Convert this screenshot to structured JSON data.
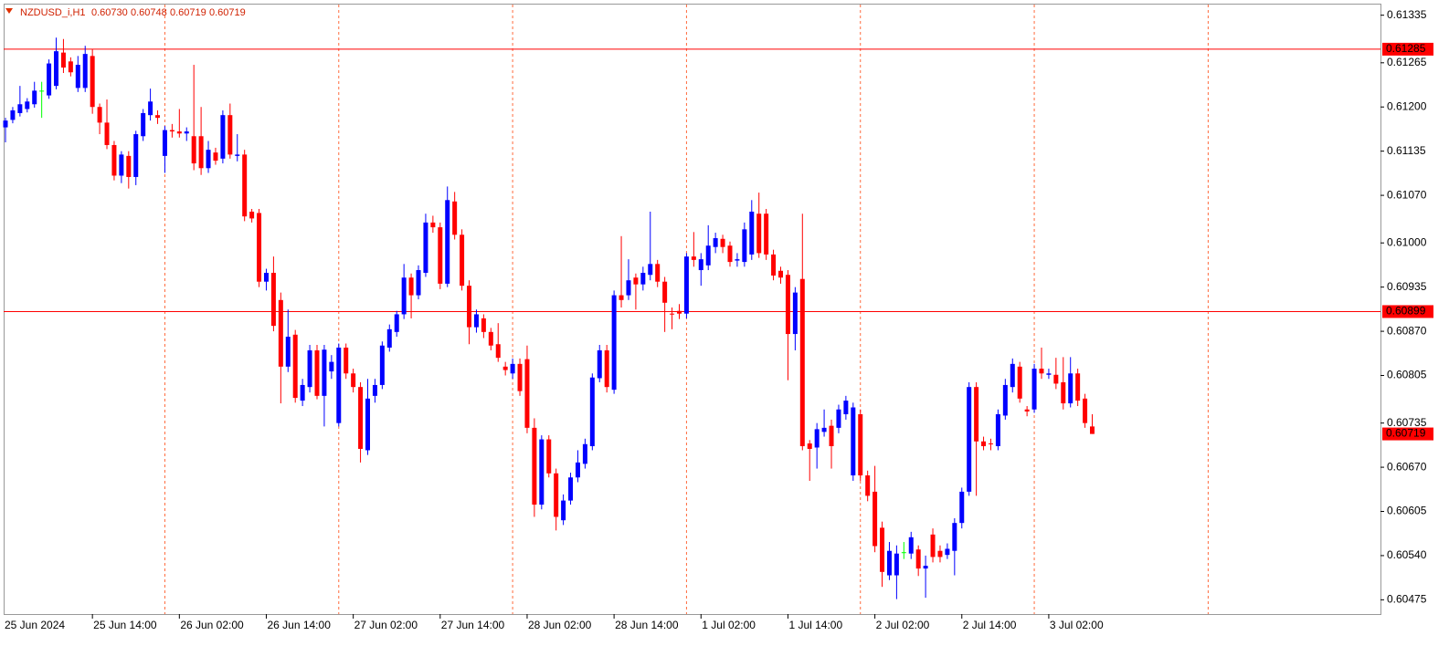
{
  "chart_data": {
    "type": "candlestick",
    "header": {
      "symbol": "NZDUSD_i,H1",
      "values": [
        {
          "value": 0.6073,
          "label": "0.60730"
        },
        {
          "value": 0.60748,
          "label": "0.60748"
        },
        {
          "value": 0.60719,
          "label": "0.60719"
        },
        {
          "value": 0.60719,
          "label": "0.60719"
        }
      ]
    },
    "categories": [
      "25 Jun 2024",
      null,
      null,
      null,
      null,
      null,
      null,
      null,
      null,
      null,
      null,
      null,
      "25 Jun 14:00",
      null,
      null,
      null,
      null,
      null,
      null,
      null,
      null,
      null,
      null,
      null,
      "26 Jun 02:00",
      null,
      null,
      null,
      null,
      null,
      null,
      null,
      null,
      null,
      null,
      null,
      "26 Jun 14:00",
      null,
      null,
      null,
      null,
      null,
      null,
      null,
      null,
      null,
      null,
      null,
      "27 Jun 02:00",
      null,
      null,
      null,
      null,
      null,
      null,
      null,
      null,
      null,
      null,
      null,
      "27 Jun 14:00",
      null,
      null,
      null,
      null,
      null,
      null,
      null,
      null,
      null,
      null,
      null,
      "28 Jun 02:00",
      null,
      null,
      null,
      null,
      null,
      null,
      null,
      null,
      null,
      null,
      null,
      "28 Jun 14:00",
      null,
      null,
      null,
      null,
      null,
      null,
      null,
      null,
      null,
      null,
      null,
      "1 Jul 02:00",
      null,
      null,
      null,
      null,
      null,
      null,
      null,
      null,
      null,
      null,
      null,
      "1 Jul 14:00",
      null,
      null,
      null,
      null,
      null,
      null,
      null,
      null,
      null,
      null,
      null,
      "2 Jul 02:00",
      null,
      null,
      null,
      null,
      null,
      null,
      null,
      null,
      null,
      null,
      null,
      "2 Jul 14:00",
      null,
      null,
      null,
      null,
      null,
      null,
      null,
      null,
      null,
      null,
      null,
      "3 Jul 02:00",
      null,
      null,
      null,
      null,
      null,
      null
    ],
    "open": [
      0.6117,
      0.61181,
      0.61191,
      0.61197,
      0.61204,
      0.61224,
      0.61217,
      0.61231,
      0.6128,
      0.61267,
      0.61228,
      0.61228,
      0.61275,
      0.612,
      0.61177,
      0.61144,
      0.61099,
      0.61128,
      0.61097,
      0.61157,
      0.61188,
      0.61188,
      0.61128,
      0.61166,
      0.61164,
      0.61161,
      0.61157,
      0.61157,
      0.6111,
      0.61133,
      0.61124,
      0.61188,
      0.61128,
      0.6113,
      0.61046,
      0.61044,
      0.60943,
      0.60956,
      0.60916,
      0.60818,
      0.60865,
      0.60768,
      0.60788,
      0.60842,
      0.60775,
      0.60811,
      0.60735,
      0.60846,
      0.60808,
      0.60788,
      0.60695,
      0.60775,
      0.60791,
      0.60846,
      0.60869,
      0.60895,
      0.60949,
      0.60923,
      0.60956,
      0.6103,
      0.61023,
      0.6094,
      0.61061,
      0.61012,
      0.60937,
      0.60876,
      0.60889,
      0.60869,
      0.60851,
      0.60818,
      0.60808,
      0.60822,
      0.60829,
      0.60728,
      0.60615,
      0.60711,
      0.60661,
      0.60592,
      0.60621,
      0.60655,
      0.60675,
      0.60701,
      0.60801,
      0.60842,
      0.60784,
      0.60923,
      0.60923,
      0.60949,
      0.60939,
      0.60953,
      0.60969,
      0.60943,
      0.60896,
      0.609,
      0.60896,
      0.6098,
      0.6096,
      0.60967,
      0.60994,
      0.61006,
      0.60996,
      0.60974,
      0.60972,
      0.60983,
      0.61043,
      0.61043,
      0.60983,
      0.60959,
      0.60953,
      0.60866,
      0.60947,
      0.60705,
      0.60699,
      0.60722,
      0.60731,
      0.60728,
      0.60748,
      0.60658,
      0.60748,
      0.60658,
      0.60634,
      0.60581,
      0.60511,
      0.60511,
      0.60545,
      0.60543,
      0.60549,
      0.60521,
      0.60571,
      0.60547,
      0.60541,
      0.60547,
      0.60588,
      0.60634,
      0.60788,
      0.60708,
      0.60705,
      0.60701,
      0.60746,
      0.60788,
      0.60818,
      0.60755,
      0.60755,
      0.60815,
      0.60806,
      0.60806,
      0.60795,
      0.60764,
      0.60808,
      0.60771,
      0.6073
    ],
    "high": [
      0.61184,
      0.612,
      0.61231,
      0.61213,
      0.61237,
      0.61237,
      0.6127,
      0.61302,
      0.613,
      0.61273,
      0.61275,
      0.6129,
      0.61285,
      0.61205,
      0.61211,
      0.6115,
      0.61135,
      0.61135,
      0.61165,
      0.61197,
      0.61227,
      0.61195,
      0.61172,
      0.61175,
      0.61197,
      0.6117,
      0.61262,
      0.612,
      0.6115,
      0.6114,
      0.61195,
      0.61205,
      0.6116,
      0.61137,
      0.6105,
      0.6105,
      0.60962,
      0.6098,
      0.60927,
      0.60902,
      0.60872,
      0.608,
      0.6085,
      0.6085,
      0.6085,
      0.60835,
      0.60852,
      0.60852,
      0.60815,
      0.60795,
      0.608,
      0.608,
      0.60855,
      0.6088,
      0.609,
      0.60969,
      0.60955,
      0.60967,
      0.61043,
      0.6104,
      0.6103,
      0.61083,
      0.61075,
      0.6102,
      0.60945,
      0.60902,
      0.60895,
      0.60875,
      0.60882,
      0.60825,
      0.6083,
      0.6083,
      0.60849,
      0.60742,
      0.60717,
      0.60717,
      0.60668,
      0.6063,
      0.60662,
      0.60695,
      0.60712,
      0.60808,
      0.6085,
      0.6085,
      0.6093,
      0.6101,
      0.60976,
      0.60955,
      0.60965,
      0.61046,
      0.60975,
      0.6095,
      0.60905,
      0.6091,
      0.60985,
      0.61016,
      0.60985,
      0.61026,
      0.61015,
      0.61012,
      0.61002,
      0.60985,
      0.6103,
      0.61063,
      0.61074,
      0.6105,
      0.6099,
      0.60965,
      0.6096,
      0.60935,
      0.61043,
      0.6071,
      0.60735,
      0.60755,
      0.6074,
      0.60762,
      0.60775,
      0.60765,
      0.60755,
      0.60665,
      0.60672,
      0.6059,
      0.6056,
      0.60555,
      0.6056,
      0.60575,
      0.60555,
      0.6054,
      0.6058,
      0.60555,
      0.60558,
      0.60595,
      0.6064,
      0.60795,
      0.60795,
      0.60715,
      0.60712,
      0.60755,
      0.608,
      0.6083,
      0.60825,
      0.6076,
      0.60822,
      0.60846,
      0.60815,
      0.60831,
      0.60832,
      0.60832,
      0.60815,
      0.60778,
      0.60748
    ],
    "low": [
      0.61148,
      0.61176,
      0.61186,
      0.61192,
      0.61199,
      0.61184,
      0.61212,
      0.61226,
      0.6125,
      0.61245,
      0.61222,
      0.61222,
      0.6119,
      0.6116,
      0.61138,
      0.61092,
      0.61088,
      0.6108,
      0.61085,
      0.6115,
      0.6118,
      0.61175,
      0.61103,
      0.61155,
      0.61155,
      0.6115,
      0.61107,
      0.611,
      0.61103,
      0.61115,
      0.61117,
      0.61124,
      0.6112,
      0.61032,
      0.6103,
      0.60935,
      0.6093,
      0.6087,
      0.60764,
      0.6081,
      0.60765,
      0.6076,
      0.6078,
      0.6077,
      0.6073,
      0.608,
      0.6073,
      0.608,
      0.6078,
      0.60677,
      0.60688,
      0.60765,
      0.60785,
      0.6084,
      0.60862,
      0.60888,
      0.60889,
      0.60917,
      0.6095,
      0.61015,
      0.60932,
      0.60935,
      0.61005,
      0.6093,
      0.60851,
      0.60868,
      0.6086,
      0.60842,
      0.60825,
      0.60805,
      0.608,
      0.60775,
      0.6072,
      0.60597,
      0.60608,
      0.60655,
      0.60577,
      0.60585,
      0.60615,
      0.60648,
      0.60668,
      0.60695,
      0.60795,
      0.6078,
      0.60778,
      0.60905,
      0.60916,
      0.60902,
      0.6093,
      0.60945,
      0.60935,
      0.60869,
      0.60873,
      0.60888,
      0.60889,
      0.60965,
      0.60937,
      0.6096,
      0.60985,
      0.60985,
      0.60965,
      0.60965,
      0.60965,
      0.60975,
      0.60978,
      0.60975,
      0.60945,
      0.6094,
      0.60798,
      0.60842,
      0.60695,
      0.6065,
      0.60668,
      0.60715,
      0.60668,
      0.6072,
      0.6074,
      0.6065,
      0.6065,
      0.6062,
      0.60545,
      0.60494,
      0.60504,
      0.60476,
      0.60535,
      0.60535,
      0.6051,
      0.60478,
      0.6053,
      0.6053,
      0.60535,
      0.60511,
      0.6058,
      0.60628,
      0.60628,
      0.60695,
      0.60695,
      0.60695,
      0.6074,
      0.6078,
      0.60765,
      0.60745,
      0.6075,
      0.608,
      0.608,
      0.60785,
      0.60755,
      0.60758,
      0.6076,
      0.60728,
      0.60719
    ],
    "close": [
      0.6118,
      0.61195,
      0.61204,
      0.61208,
      0.61224,
      0.61224,
      0.61264,
      0.61282,
      0.61258,
      0.61251,
      0.61262,
      0.61278,
      0.612,
      0.61177,
      0.61144,
      0.61099,
      0.6113,
      0.61097,
      0.6116,
      0.61191,
      0.61208,
      0.61184,
      0.61166,
      0.61164,
      0.61161,
      0.61164,
      0.61117,
      0.6111,
      0.61137,
      0.61121,
      0.61188,
      0.6113,
      0.6113,
      0.61039,
      0.61036,
      0.60943,
      0.60956,
      0.60878,
      0.60818,
      0.60862,
      0.60772,
      0.60791,
      0.60842,
      0.60775,
      0.60843,
      0.60825,
      0.60846,
      0.60808,
      0.60788,
      0.60697,
      0.60771,
      0.60791,
      0.60849,
      0.60873,
      0.60895,
      0.60949,
      0.60923,
      0.6096,
      0.6103,
      0.61023,
      0.6094,
      0.61063,
      0.61012,
      0.60937,
      0.60876,
      0.60895,
      0.60869,
      0.60849,
      0.60831,
      0.60813,
      0.60822,
      0.60782,
      0.60728,
      0.60615,
      0.60711,
      0.60661,
      0.60597,
      0.60621,
      0.60655,
      0.60677,
      0.60704,
      0.60802,
      0.60842,
      0.60788,
      0.60923,
      0.60916,
      0.60945,
      0.60939,
      0.60956,
      0.60969,
      0.60943,
      0.60912,
      0.60895,
      0.60896,
      0.6098,
      0.60975,
      0.60976,
      0.60996,
      0.61007,
      0.60994,
      0.60972,
      0.60976,
      0.6102,
      0.61046,
      0.60985,
      0.60983,
      0.60952,
      0.60949,
      0.60866,
      0.60927,
      0.60701,
      0.60697,
      0.60726,
      0.60728,
      0.60701,
      0.60755,
      0.60768,
      0.60758,
      0.60658,
      0.60628,
      0.60554,
      0.60516,
      0.60547,
      0.60543,
      0.60545,
      0.60567,
      0.60521,
      0.60525,
      0.60538,
      0.60538,
      0.6055,
      0.60588,
      0.60634,
      0.60788,
      0.60708,
      0.60701,
      0.60704,
      0.60748,
      0.60791,
      0.60822,
      0.60771,
      0.60752,
      0.60815,
      0.60808,
      0.60808,
      0.60793,
      0.60764,
      0.60808,
      0.60768,
      0.60735,
      0.60719
    ],
    "bull_color": "#0000ff",
    "bear_color": "#ff0000",
    "doji_color": "#00ff00",
    "hlines": [
      {
        "value": 0.61285,
        "color": "#ff0000"
      },
      {
        "value": 0.60899,
        "color": "#ff0000"
      }
    ],
    "ylim": [
      0.60454,
      0.61352
    ],
    "yticks": [
      0.61335,
      0.61265,
      {
        "value": 0.612,
        "label": "0.61200"
      },
      0.61135,
      {
        "value": 0.6107,
        "label": "0.61070"
      },
      {
        "value": 0.61,
        "label": "0.61000"
      },
      0.60935,
      {
        "value": 0.6087,
        "label": "0.60870"
      },
      0.60805,
      0.60735,
      {
        "value": 0.6067,
        "label": "0.60670"
      },
      0.60605,
      {
        "value": 0.6054,
        "label": "0.60540"
      },
      0.60475
    ],
    "grid": false
  }
}
